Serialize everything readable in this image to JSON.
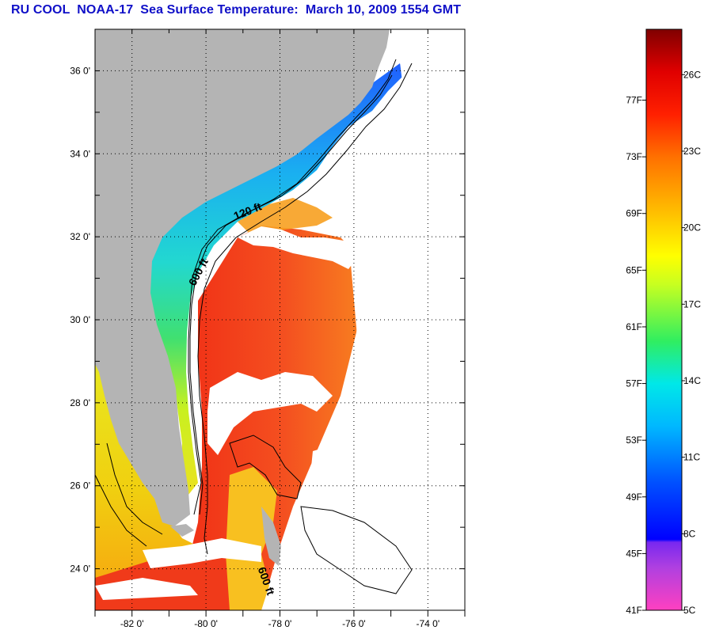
{
  "title": "RU COOL  NOAA-17  Sea Surface Temperature:  March 10, 2009 1554 GMT",
  "map": {
    "lon_range": [
      -83,
      -73
    ],
    "lat_range": [
      23,
      37
    ],
    "lat_ticks": [
      {
        "value": 24,
        "label": "24 0'"
      },
      {
        "value": 26,
        "label": "26 0'"
      },
      {
        "value": 28,
        "label": "28 0'"
      },
      {
        "value": 30,
        "label": "30 0'"
      },
      {
        "value": 32,
        "label": "32 0'"
      },
      {
        "value": 34,
        "label": "34 0'"
      },
      {
        "value": 36,
        "label": "36 0'"
      }
    ],
    "lon_ticks": [
      {
        "value": -82,
        "label": "-82 0'"
      },
      {
        "value": -80,
        "label": "-80 0'"
      },
      {
        "value": -78,
        "label": "-78 0'"
      },
      {
        "value": -76,
        "label": "-76 0'"
      },
      {
        "value": -74,
        "label": "-74 0'"
      }
    ],
    "contour_labels": [
      {
        "text": "120 ft",
        "lon": -79.2,
        "lat": 32.4,
        "angle": -22
      },
      {
        "text": "600 ft",
        "lon": -80.3,
        "lat": 30.8,
        "angle": -62
      },
      {
        "text": "600 ft",
        "lon": -78.6,
        "lat": 24.0,
        "angle": 70
      }
    ],
    "colors": {
      "land": "#b4b4b4",
      "gulf_stream": "#f03a1a",
      "shelf_cold": "#2aa0ee",
      "shelf_mid": "#22d8c8",
      "shelf_warm": "#e8e820",
      "cloud": "#ffffff"
    }
  },
  "colorbar": {
    "range_f": [
      41,
      82
    ],
    "f_ticks": [
      {
        "value": 77,
        "label": "77F"
      },
      {
        "value": 73,
        "label": "73F"
      },
      {
        "value": 69,
        "label": "69F"
      },
      {
        "value": 65,
        "label": "65F"
      },
      {
        "value": 61,
        "label": "61F"
      },
      {
        "value": 57,
        "label": "57F"
      },
      {
        "value": 53,
        "label": "53F"
      },
      {
        "value": 49,
        "label": "49F"
      },
      {
        "value": 45,
        "label": "45F"
      },
      {
        "value": 41,
        "label": "41F"
      }
    ],
    "c_ticks": [
      {
        "value_f": 78.8,
        "label": "26C"
      },
      {
        "value_f": 73.4,
        "label": "23C"
      },
      {
        "value_f": 68.0,
        "label": "20C"
      },
      {
        "value_f": 62.6,
        "label": "17C"
      },
      {
        "value_f": 57.2,
        "label": "14C"
      },
      {
        "value_f": 51.8,
        "label": "11C"
      },
      {
        "value_f": 46.4,
        "label": "8C"
      },
      {
        "value_f": 41.0,
        "label": "5C"
      }
    ],
    "stops": [
      {
        "f": 41,
        "color": "#ff40c0"
      },
      {
        "f": 44,
        "color": "#b040e0"
      },
      {
        "f": 45.8,
        "color": "#7828f0"
      },
      {
        "f": 46,
        "color": "#0000ff"
      },
      {
        "f": 50,
        "color": "#0050ff"
      },
      {
        "f": 54,
        "color": "#00b8ff"
      },
      {
        "f": 57,
        "color": "#00e8e8"
      },
      {
        "f": 60,
        "color": "#30ee60"
      },
      {
        "f": 64,
        "color": "#c8ff20"
      },
      {
        "f": 66,
        "color": "#ffff00"
      },
      {
        "f": 69,
        "color": "#ffc000"
      },
      {
        "f": 73,
        "color": "#ff7000"
      },
      {
        "f": 76,
        "color": "#ff2000"
      },
      {
        "f": 79,
        "color": "#e00000"
      },
      {
        "f": 82,
        "color": "#800000"
      }
    ]
  }
}
